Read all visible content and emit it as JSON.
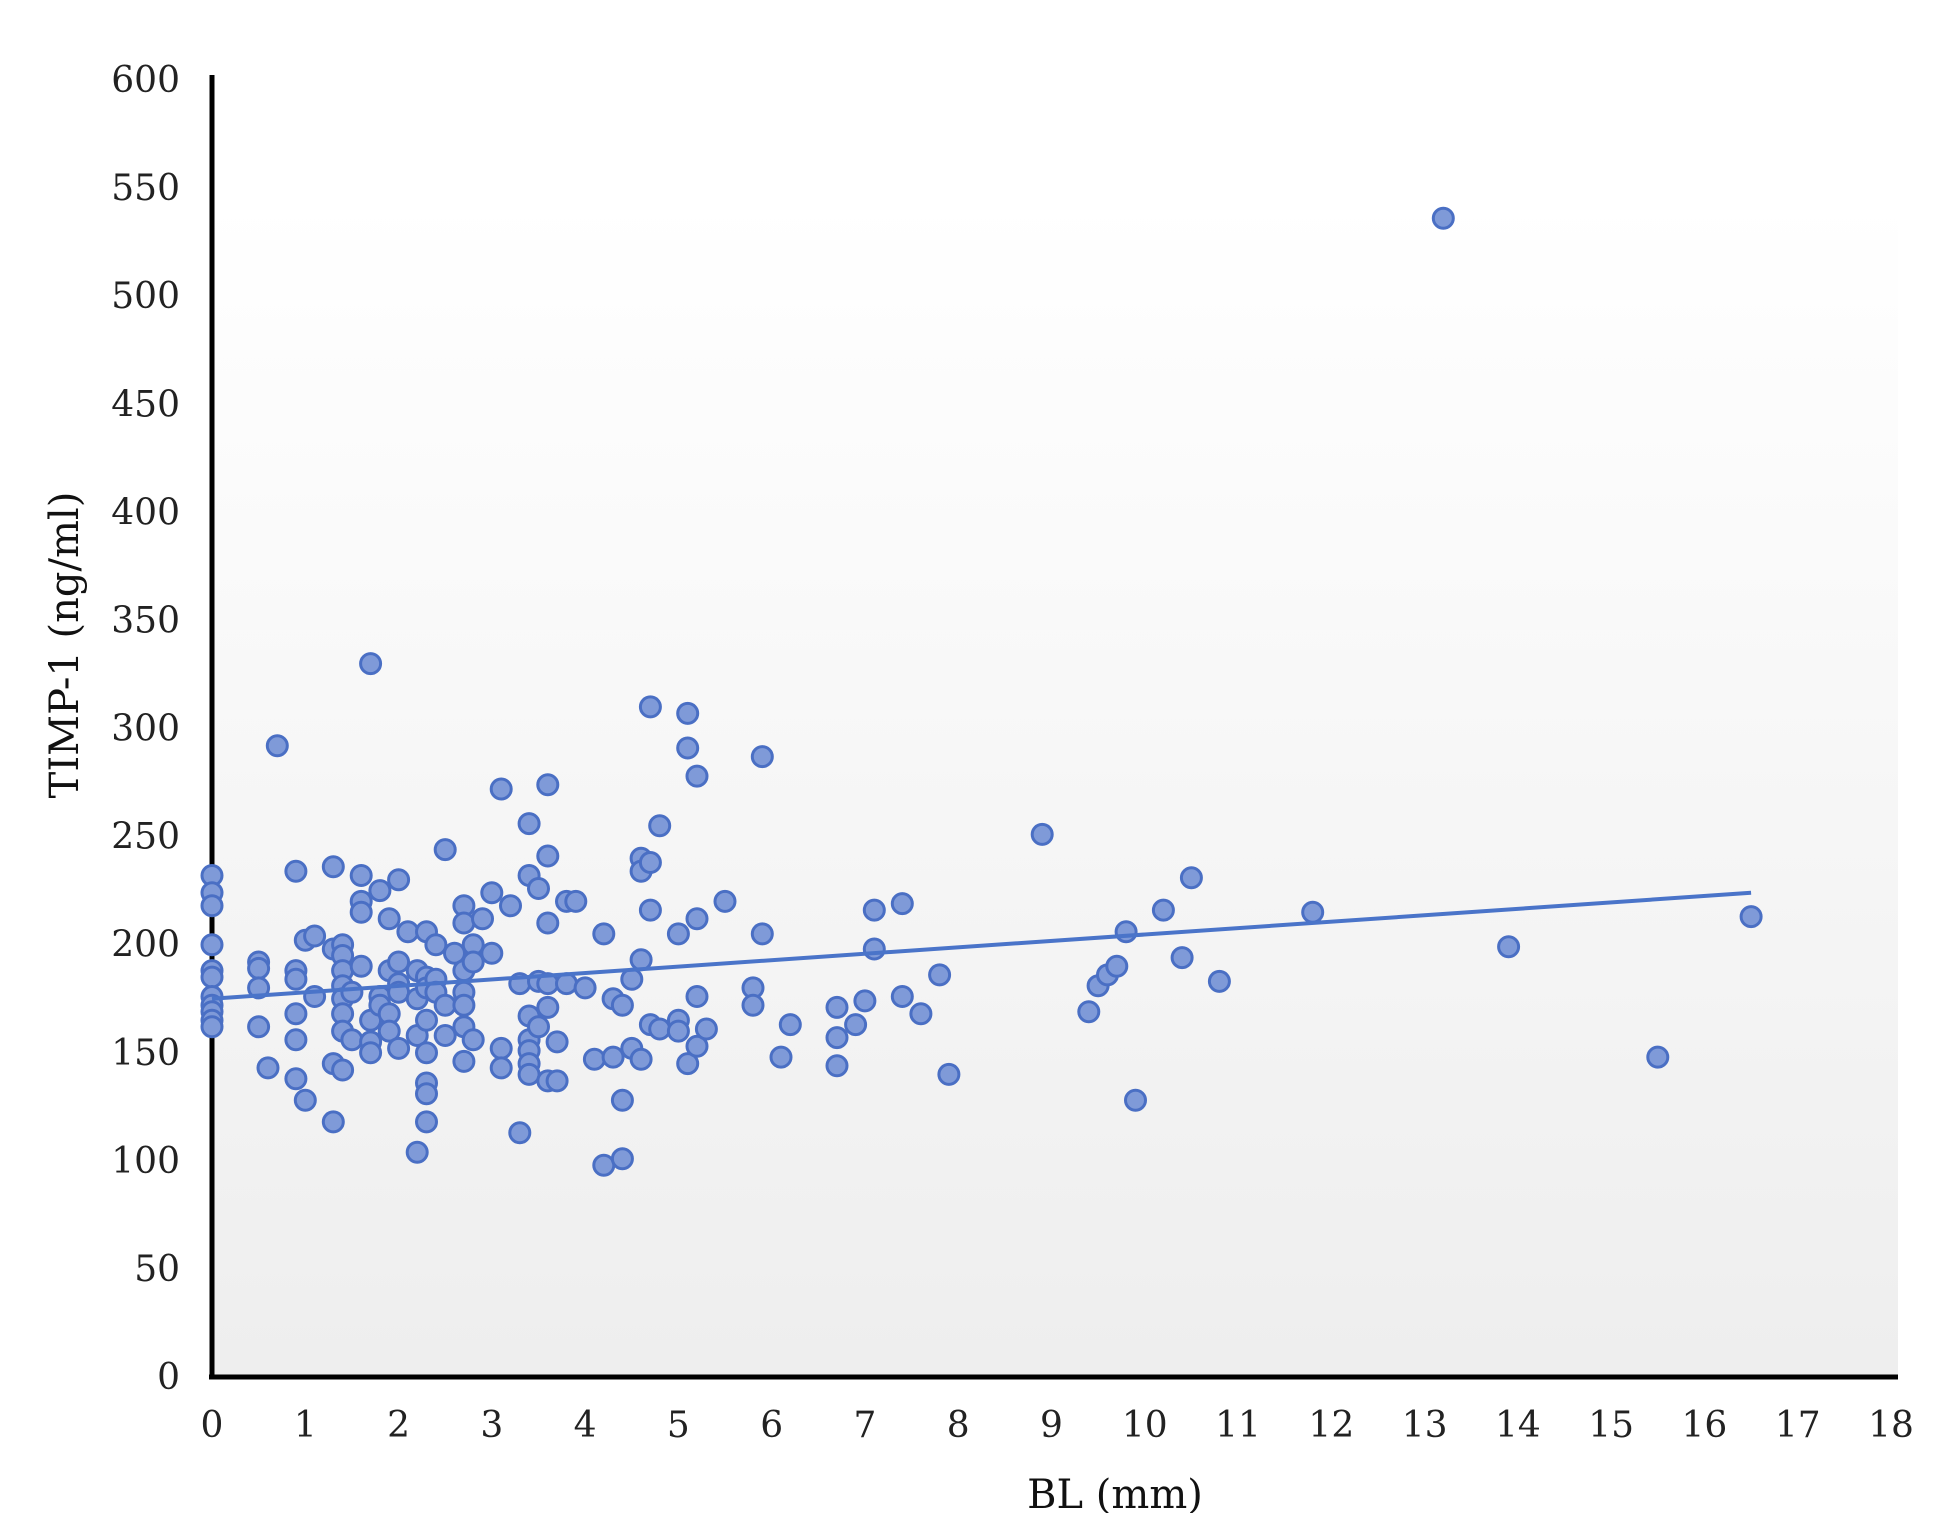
{
  "chart_data": {
    "type": "scatter",
    "title": "",
    "xlabel": "BL (mm)",
    "ylabel": "TIMP-1 (ng/ml)",
    "xlim": [
      0,
      18
    ],
    "ylim": [
      0,
      600
    ],
    "x_ticks": [
      "0",
      "1",
      "2",
      "3",
      "4",
      "5",
      "6",
      "7",
      "8",
      "9",
      "10",
      "11",
      "12",
      "13",
      "14",
      "15",
      "16",
      "17",
      "18"
    ],
    "y_ticks": [
      "0",
      "50",
      "100",
      "150",
      "200",
      "250",
      "300",
      "350",
      "400",
      "450",
      "500",
      "550",
      "600"
    ],
    "grid": false,
    "legend": "none",
    "colors": {
      "marker_fill": "#7f9ad8",
      "marker_edge": "#4a6fc4",
      "trendline": "#4a74c9",
      "axis": "#000000"
    },
    "trendline": {
      "type": "linear",
      "points": [
        [
          0,
          175
        ],
        [
          16.5,
          224
        ]
      ]
    },
    "points": [
      [
        0,
        232
      ],
      [
        0,
        224
      ],
      [
        0,
        218
      ],
      [
        0,
        200
      ],
      [
        0,
        188
      ],
      [
        0,
        185
      ],
      [
        0,
        176
      ],
      [
        0,
        172
      ],
      [
        0,
        169
      ],
      [
        0,
        165
      ],
      [
        0,
        162
      ],
      [
        0.5,
        192
      ],
      [
        0.5,
        189
      ],
      [
        0.5,
        180
      ],
      [
        0.5,
        162
      ],
      [
        0.6,
        143
      ],
      [
        0.7,
        292
      ],
      [
        0.9,
        234
      ],
      [
        0.9,
        188
      ],
      [
        0.9,
        184
      ],
      [
        0.9,
        168
      ],
      [
        0.9,
        156
      ],
      [
        0.9,
        138
      ],
      [
        1.0,
        202
      ],
      [
        1.0,
        128
      ],
      [
        1.1,
        204
      ],
      [
        1.1,
        176
      ],
      [
        1.3,
        236
      ],
      [
        1.3,
        198
      ],
      [
        1.3,
        145
      ],
      [
        1.3,
        118
      ],
      [
        1.4,
        200
      ],
      [
        1.4,
        195
      ],
      [
        1.4,
        188
      ],
      [
        1.4,
        181
      ],
      [
        1.4,
        175
      ],
      [
        1.4,
        168
      ],
      [
        1.4,
        160
      ],
      [
        1.4,
        142
      ],
      [
        1.5,
        156
      ],
      [
        1.5,
        178
      ],
      [
        1.6,
        232
      ],
      [
        1.6,
        220
      ],
      [
        1.6,
        215
      ],
      [
        1.6,
        190
      ],
      [
        1.7,
        330
      ],
      [
        1.7,
        165
      ],
      [
        1.7,
        155
      ],
      [
        1.7,
        150
      ],
      [
        1.8,
        225
      ],
      [
        1.8,
        176
      ],
      [
        1.8,
        172
      ],
      [
        1.9,
        212
      ],
      [
        1.9,
        188
      ],
      [
        1.9,
        168
      ],
      [
        1.9,
        160
      ],
      [
        2.0,
        230
      ],
      [
        2.0,
        192
      ],
      [
        2.0,
        182
      ],
      [
        2.0,
        178
      ],
      [
        2.0,
        152
      ],
      [
        2.1,
        206
      ],
      [
        2.2,
        188
      ],
      [
        2.2,
        175
      ],
      [
        2.2,
        158
      ],
      [
        2.2,
        104
      ],
      [
        2.3,
        206
      ],
      [
        2.3,
        185
      ],
      [
        2.3,
        180
      ],
      [
        2.3,
        165
      ],
      [
        2.3,
        150
      ],
      [
        2.3,
        136
      ],
      [
        2.3,
        131
      ],
      [
        2.3,
        118
      ],
      [
        2.4,
        200
      ],
      [
        2.4,
        184
      ],
      [
        2.4,
        178
      ],
      [
        2.5,
        244
      ],
      [
        2.5,
        172
      ],
      [
        2.5,
        158
      ],
      [
        2.6,
        196
      ],
      [
        2.7,
        218
      ],
      [
        2.7,
        210
      ],
      [
        2.7,
        188
      ],
      [
        2.7,
        178
      ],
      [
        2.7,
        172
      ],
      [
        2.7,
        162
      ],
      [
        2.7,
        146
      ],
      [
        2.8,
        200
      ],
      [
        2.8,
        192
      ],
      [
        2.8,
        156
      ],
      [
        2.9,
        212
      ],
      [
        3.0,
        224
      ],
      [
        3.0,
        196
      ],
      [
        3.1,
        272
      ],
      [
        3.1,
        152
      ],
      [
        3.1,
        143
      ],
      [
        3.2,
        218
      ],
      [
        3.3,
        182
      ],
      [
        3.3,
        113
      ],
      [
        3.4,
        256
      ],
      [
        3.4,
        232
      ],
      [
        3.4,
        167
      ],
      [
        3.4,
        156
      ],
      [
        3.4,
        151
      ],
      [
        3.4,
        145
      ],
      [
        3.4,
        140
      ],
      [
        3.5,
        226
      ],
      [
        3.5,
        183
      ],
      [
        3.5,
        162
      ],
      [
        3.6,
        274
      ],
      [
        3.6,
        241
      ],
      [
        3.6,
        210
      ],
      [
        3.6,
        182
      ],
      [
        3.6,
        171
      ],
      [
        3.6,
        137
      ],
      [
        3.7,
        155
      ],
      [
        3.7,
        137
      ],
      [
        3.8,
        220
      ],
      [
        3.8,
        182
      ],
      [
        3.9,
        220
      ],
      [
        4.0,
        180
      ],
      [
        4.1,
        147
      ],
      [
        4.2,
        205
      ],
      [
        4.2,
        98
      ],
      [
        4.3,
        175
      ],
      [
        4.3,
        148
      ],
      [
        4.4,
        172
      ],
      [
        4.4,
        128
      ],
      [
        4.4,
        101
      ],
      [
        4.5,
        184
      ],
      [
        4.5,
        152
      ],
      [
        4.6,
        240
      ],
      [
        4.6,
        234
      ],
      [
        4.6,
        193
      ],
      [
        4.6,
        147
      ],
      [
        4.7,
        310
      ],
      [
        4.7,
        238
      ],
      [
        4.7,
        216
      ],
      [
        4.7,
        163
      ],
      [
        4.8,
        255
      ],
      [
        4.8,
        161
      ],
      [
        5.0,
        205
      ],
      [
        5.0,
        165
      ],
      [
        5.0,
        160
      ],
      [
        5.1,
        307
      ],
      [
        5.1,
        291
      ],
      [
        5.1,
        145
      ],
      [
        5.2,
        278
      ],
      [
        5.2,
        212
      ],
      [
        5.2,
        176
      ],
      [
        5.2,
        153
      ],
      [
        5.3,
        161
      ],
      [
        5.5,
        220
      ],
      [
        5.8,
        180
      ],
      [
        5.8,
        172
      ],
      [
        5.9,
        287
      ],
      [
        5.9,
        205
      ],
      [
        6.1,
        148
      ],
      [
        6.2,
        163
      ],
      [
        6.7,
        171
      ],
      [
        6.7,
        157
      ],
      [
        6.7,
        144
      ],
      [
        6.9,
        163
      ],
      [
        7.0,
        174
      ],
      [
        7.1,
        216
      ],
      [
        7.1,
        198
      ],
      [
        7.4,
        219
      ],
      [
        7.4,
        176
      ],
      [
        7.6,
        168
      ],
      [
        7.8,
        186
      ],
      [
        7.9,
        140
      ],
      [
        8.9,
        251
      ],
      [
        9.4,
        169
      ],
      [
        9.5,
        181
      ],
      [
        9.6,
        186
      ],
      [
        9.7,
        190
      ],
      [
        9.8,
        206
      ],
      [
        9.9,
        128
      ],
      [
        10.2,
        216
      ],
      [
        10.4,
        194
      ],
      [
        10.5,
        231
      ],
      [
        10.8,
        183
      ],
      [
        11.8,
        215
      ],
      [
        13.2,
        536
      ],
      [
        13.9,
        199
      ],
      [
        15.5,
        148
      ],
      [
        16.5,
        213
      ]
    ]
  }
}
